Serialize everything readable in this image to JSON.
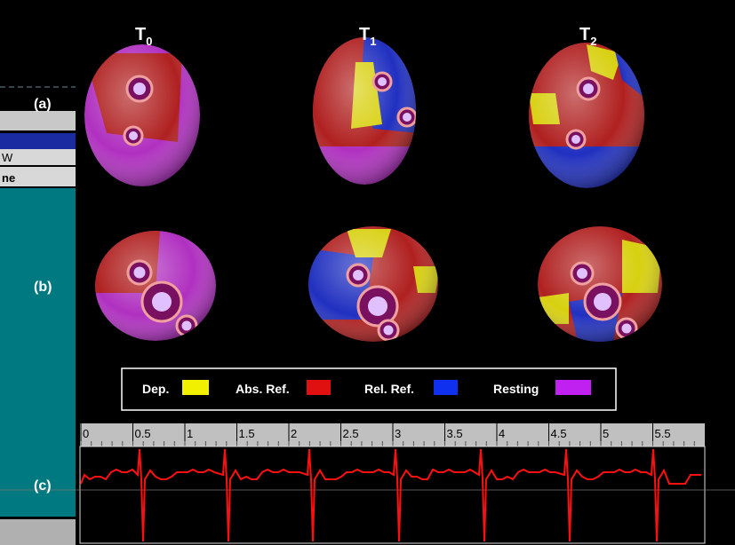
{
  "columns": [
    {
      "letter": "T",
      "sub": "0"
    },
    {
      "letter": "T",
      "sub": "1"
    },
    {
      "letter": "T",
      "sub": "2"
    }
  ],
  "rows": [
    "(a)",
    "(b)",
    "(c)"
  ],
  "legend": [
    {
      "label": "Dep.",
      "color": "#f0f000"
    },
    {
      "label": "Abs. Ref.",
      "color": "#e01010"
    },
    {
      "label": "Rel. Ref.",
      "color": "#1030f0"
    },
    {
      "label": "Resting",
      "color": "#c020f0"
    }
  ],
  "ruler": {
    "xlim": [
      0,
      6
    ],
    "xticks": [
      0,
      0.5,
      1,
      1.5,
      2,
      2.5,
      3,
      3.5,
      4,
      4.5,
      5,
      5.5
    ]
  },
  "background_fragments": [
    "W",
    "ne"
  ]
}
